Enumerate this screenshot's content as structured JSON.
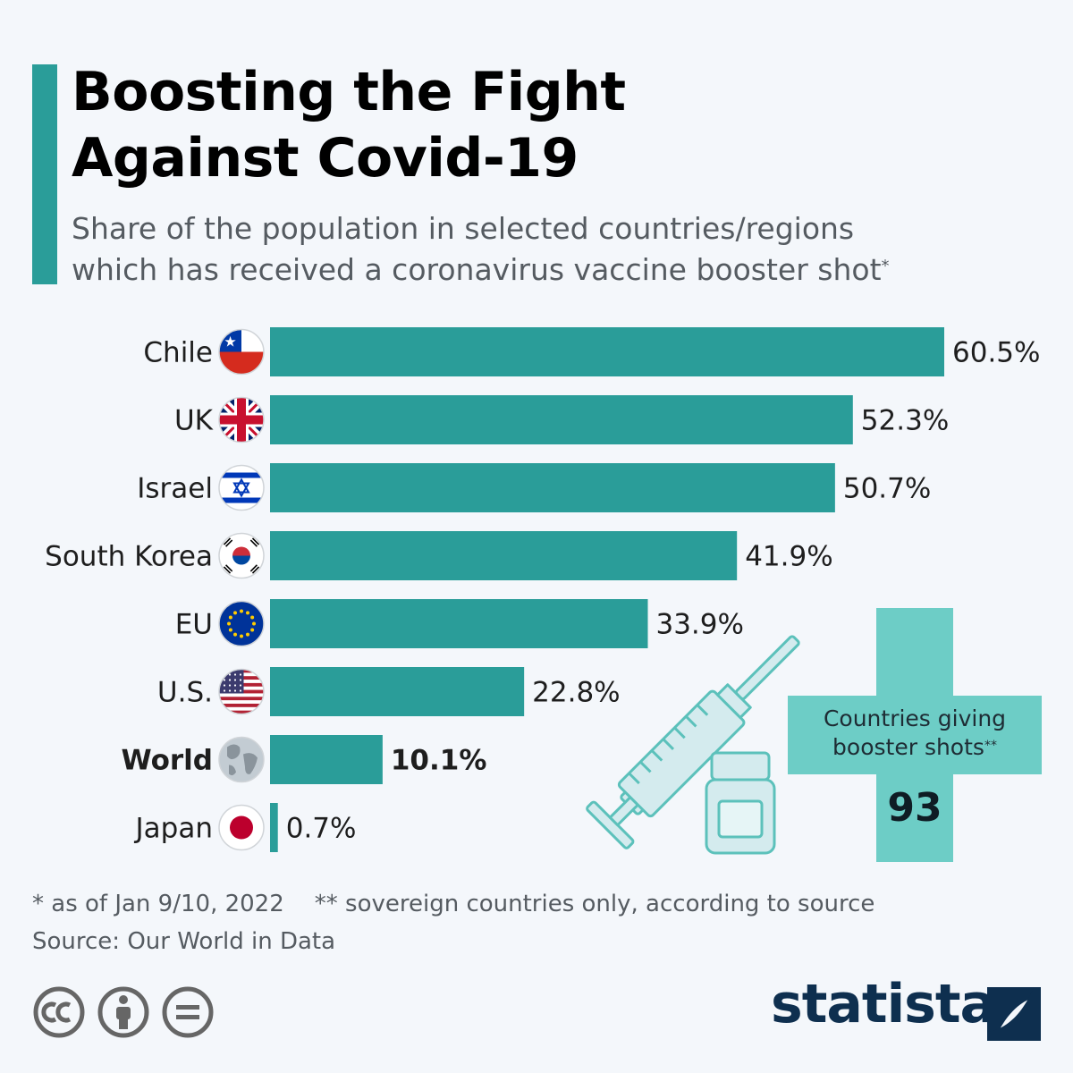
{
  "header": {
    "title_line1": "Boosting the Fight",
    "title_line2": "Against Covid-19",
    "subtitle_line1": "Share of the population in selected countries/regions",
    "subtitle_line2": "which has received a coronavirus vaccine booster shot",
    "subtitle_mark": "*"
  },
  "chart_data": {
    "type": "bar",
    "orientation": "horizontal",
    "categories": [
      "Chile",
      "UK",
      "Israel",
      "South Korea",
      "EU",
      "U.S.",
      "World",
      "Japan"
    ],
    "values": [
      60.5,
      52.3,
      50.7,
      41.9,
      33.9,
      22.8,
      10.1,
      0.7
    ],
    "value_labels": [
      "60.5%",
      "52.3%",
      "50.7%",
      "41.9%",
      "33.9%",
      "22.8%",
      "10.1%",
      "0.7%"
    ],
    "flags": [
      "chile-flag-icon",
      "uk-flag-icon",
      "israel-flag-icon",
      "south-korea-flag-icon",
      "eu-flag-icon",
      "us-flag-icon",
      "globe-icon",
      "japan-flag-icon"
    ],
    "highlight": "World",
    "unit": "%",
    "bar_color": "#2a9d99",
    "xlim": [
      0,
      60.5
    ],
    "grid": false,
    "legend": "none"
  },
  "callout": {
    "label_line1": "Countries giving",
    "label_line2": "booster shots",
    "label_mark": "**",
    "value": "93",
    "icons": [
      "syringe-icon",
      "vaccine-vial-icon",
      "medical-cross-icon"
    ],
    "color": "#6dcdc6"
  },
  "footnotes": {
    "note1": "* as of Jan 9/10, 2022",
    "note2": "** sovereign countries only, according to source",
    "source": "Source: Our World in Data"
  },
  "license": {
    "icons": [
      "creative-commons-icon",
      "attribution-icon",
      "no-derivatives-icon"
    ]
  },
  "brand": {
    "name": "statista",
    "color": "#0e2f4f"
  }
}
